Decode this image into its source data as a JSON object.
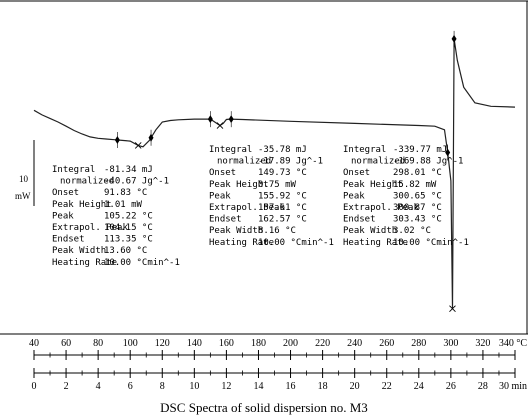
{
  "chart_data": {
    "type": "line",
    "caption": "DSC Spectra of solid dispersion no. M3",
    "y_scale": {
      "value": "10",
      "unit": "mW"
    },
    "temperature_axis": {
      "ticks": [
        "40",
        "60",
        "80",
        "100",
        "120",
        "140",
        "160",
        "180",
        "200",
        "220",
        "240",
        "260",
        "280",
        "300",
        "320",
        "340"
      ],
      "unit": "°C",
      "range": [
        40,
        340
      ]
    },
    "time_axis": {
      "ticks": [
        "0",
        "2",
        "4",
        "6",
        "8",
        "10",
        "12",
        "14",
        "16",
        "18",
        "20",
        "22",
        "24",
        "26",
        "28",
        "30"
      ],
      "unit": "min",
      "range": [
        0,
        30
      ]
    },
    "series": [
      {
        "x": [
          40,
          45,
          50,
          55,
          60,
          65,
          70,
          75,
          80,
          85,
          90,
          95,
          100,
          105,
          108,
          112,
          116,
          120,
          125,
          130,
          140,
          150,
          152,
          156,
          158,
          160,
          162,
          170,
          200,
          240,
          280,
          290,
          296,
          298,
          300,
          301,
          302,
          304,
          308,
          315,
          325,
          340
        ],
        "y": [
          0.95,
          0.3,
          -0.2,
          -0.7,
          -1.3,
          -1.9,
          -2.4,
          -2.8,
          -3.0,
          -3.1,
          -3.2,
          -3.3,
          -3.4,
          -4.0,
          -4.2,
          -3.3,
          -1.8,
          -0.7,
          -0.5,
          -0.4,
          -0.3,
          -0.3,
          -0.6,
          -1.2,
          -0.9,
          -0.35,
          -0.3,
          -0.35,
          -0.6,
          -0.9,
          -1.2,
          -1.3,
          -1.8,
          -5.0,
          -9.0,
          -27.0,
          11.0,
          8.0,
          4.2,
          2.0,
          1.5,
          1.4
        ]
      }
    ],
    "peaks": [
      {
        "labels": [
          "Integral",
          "normalized",
          "Onset",
          "Peak Height",
          "Peak",
          "Extrapol. Peak",
          "Endset",
          "Peak Width",
          "Heating Rate"
        ],
        "values": [
          "-81.34 mJ",
          "-40.67 Jg^-1",
          "91.83 °C",
          "1.01 mW",
          "105.22 °C",
          "104.15 °C",
          "113.35 °C",
          "13.60 °C",
          "10.00 °Cmin^-1"
        ]
      },
      {
        "labels": [
          "Integral",
          "normalized",
          "Onset",
          "Peak Height",
          "Peak",
          "Extrapol. Peak",
          "Endset",
          "Peak Width",
          "Heating Rate"
        ],
        "values": [
          "-35.78 mJ",
          "-17.89 Jg^-1",
          "149.73 °C",
          "0.75 mW",
          "155.92 °C",
          "157.61 °C",
          "162.57 °C",
          "8.16 °C",
          "10.00 °Cmin^-1"
        ]
      },
      {
        "labels": [
          "Integral",
          "normalized",
          "Onset",
          "Peak Height",
          "Peak",
          "Extrapol. Peak",
          "Endset",
          "Peak Width",
          "Heating Rate"
        ],
        "values": [
          "-339.77 mJ",
          "-169.88 Jg^-1",
          "298.01 °C",
          "15.82 mW",
          "300.65 °C",
          "300.87 °C",
          "303.43 °C",
          "3.02 °C",
          "10.00 °Cmin^-1"
        ]
      }
    ],
    "colors": {
      "curve": "#222222",
      "axis": "#000000"
    }
  }
}
